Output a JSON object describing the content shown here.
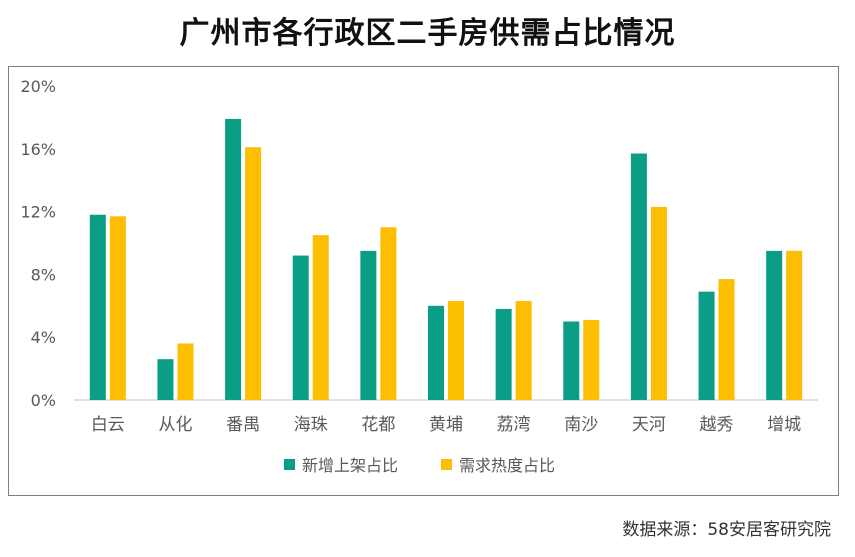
{
  "title": "广州市各行政区二手房供需占比情况",
  "source": "数据来源：58安居客研究院",
  "colors": {
    "supply": "#0a9e86",
    "demand": "#fbbe00",
    "axis": "#d9d9d9",
    "text": "#595959"
  },
  "chart_data": {
    "type": "bar",
    "categories": [
      "白云",
      "从化",
      "番禺",
      "海珠",
      "花都",
      "黄埔",
      "荔湾",
      "南沙",
      "天河",
      "越秀",
      "增城"
    ],
    "series": [
      {
        "name": "新增上架占比",
        "values": [
          11.8,
          2.6,
          17.9,
          9.2,
          9.5,
          6.0,
          5.8,
          5.0,
          15.7,
          6.9,
          9.5
        ]
      },
      {
        "name": "需求热度占比",
        "values": [
          11.7,
          3.6,
          16.1,
          10.5,
          11.0,
          6.3,
          6.3,
          5.1,
          12.3,
          7.7,
          9.5
        ]
      }
    ],
    "yticks": [
      "0%",
      "4%",
      "8%",
      "12%",
      "16%",
      "20%"
    ],
    "ylim": [
      0,
      20
    ],
    "unit": "%",
    "legend_position": "bottom",
    "grid": false
  }
}
